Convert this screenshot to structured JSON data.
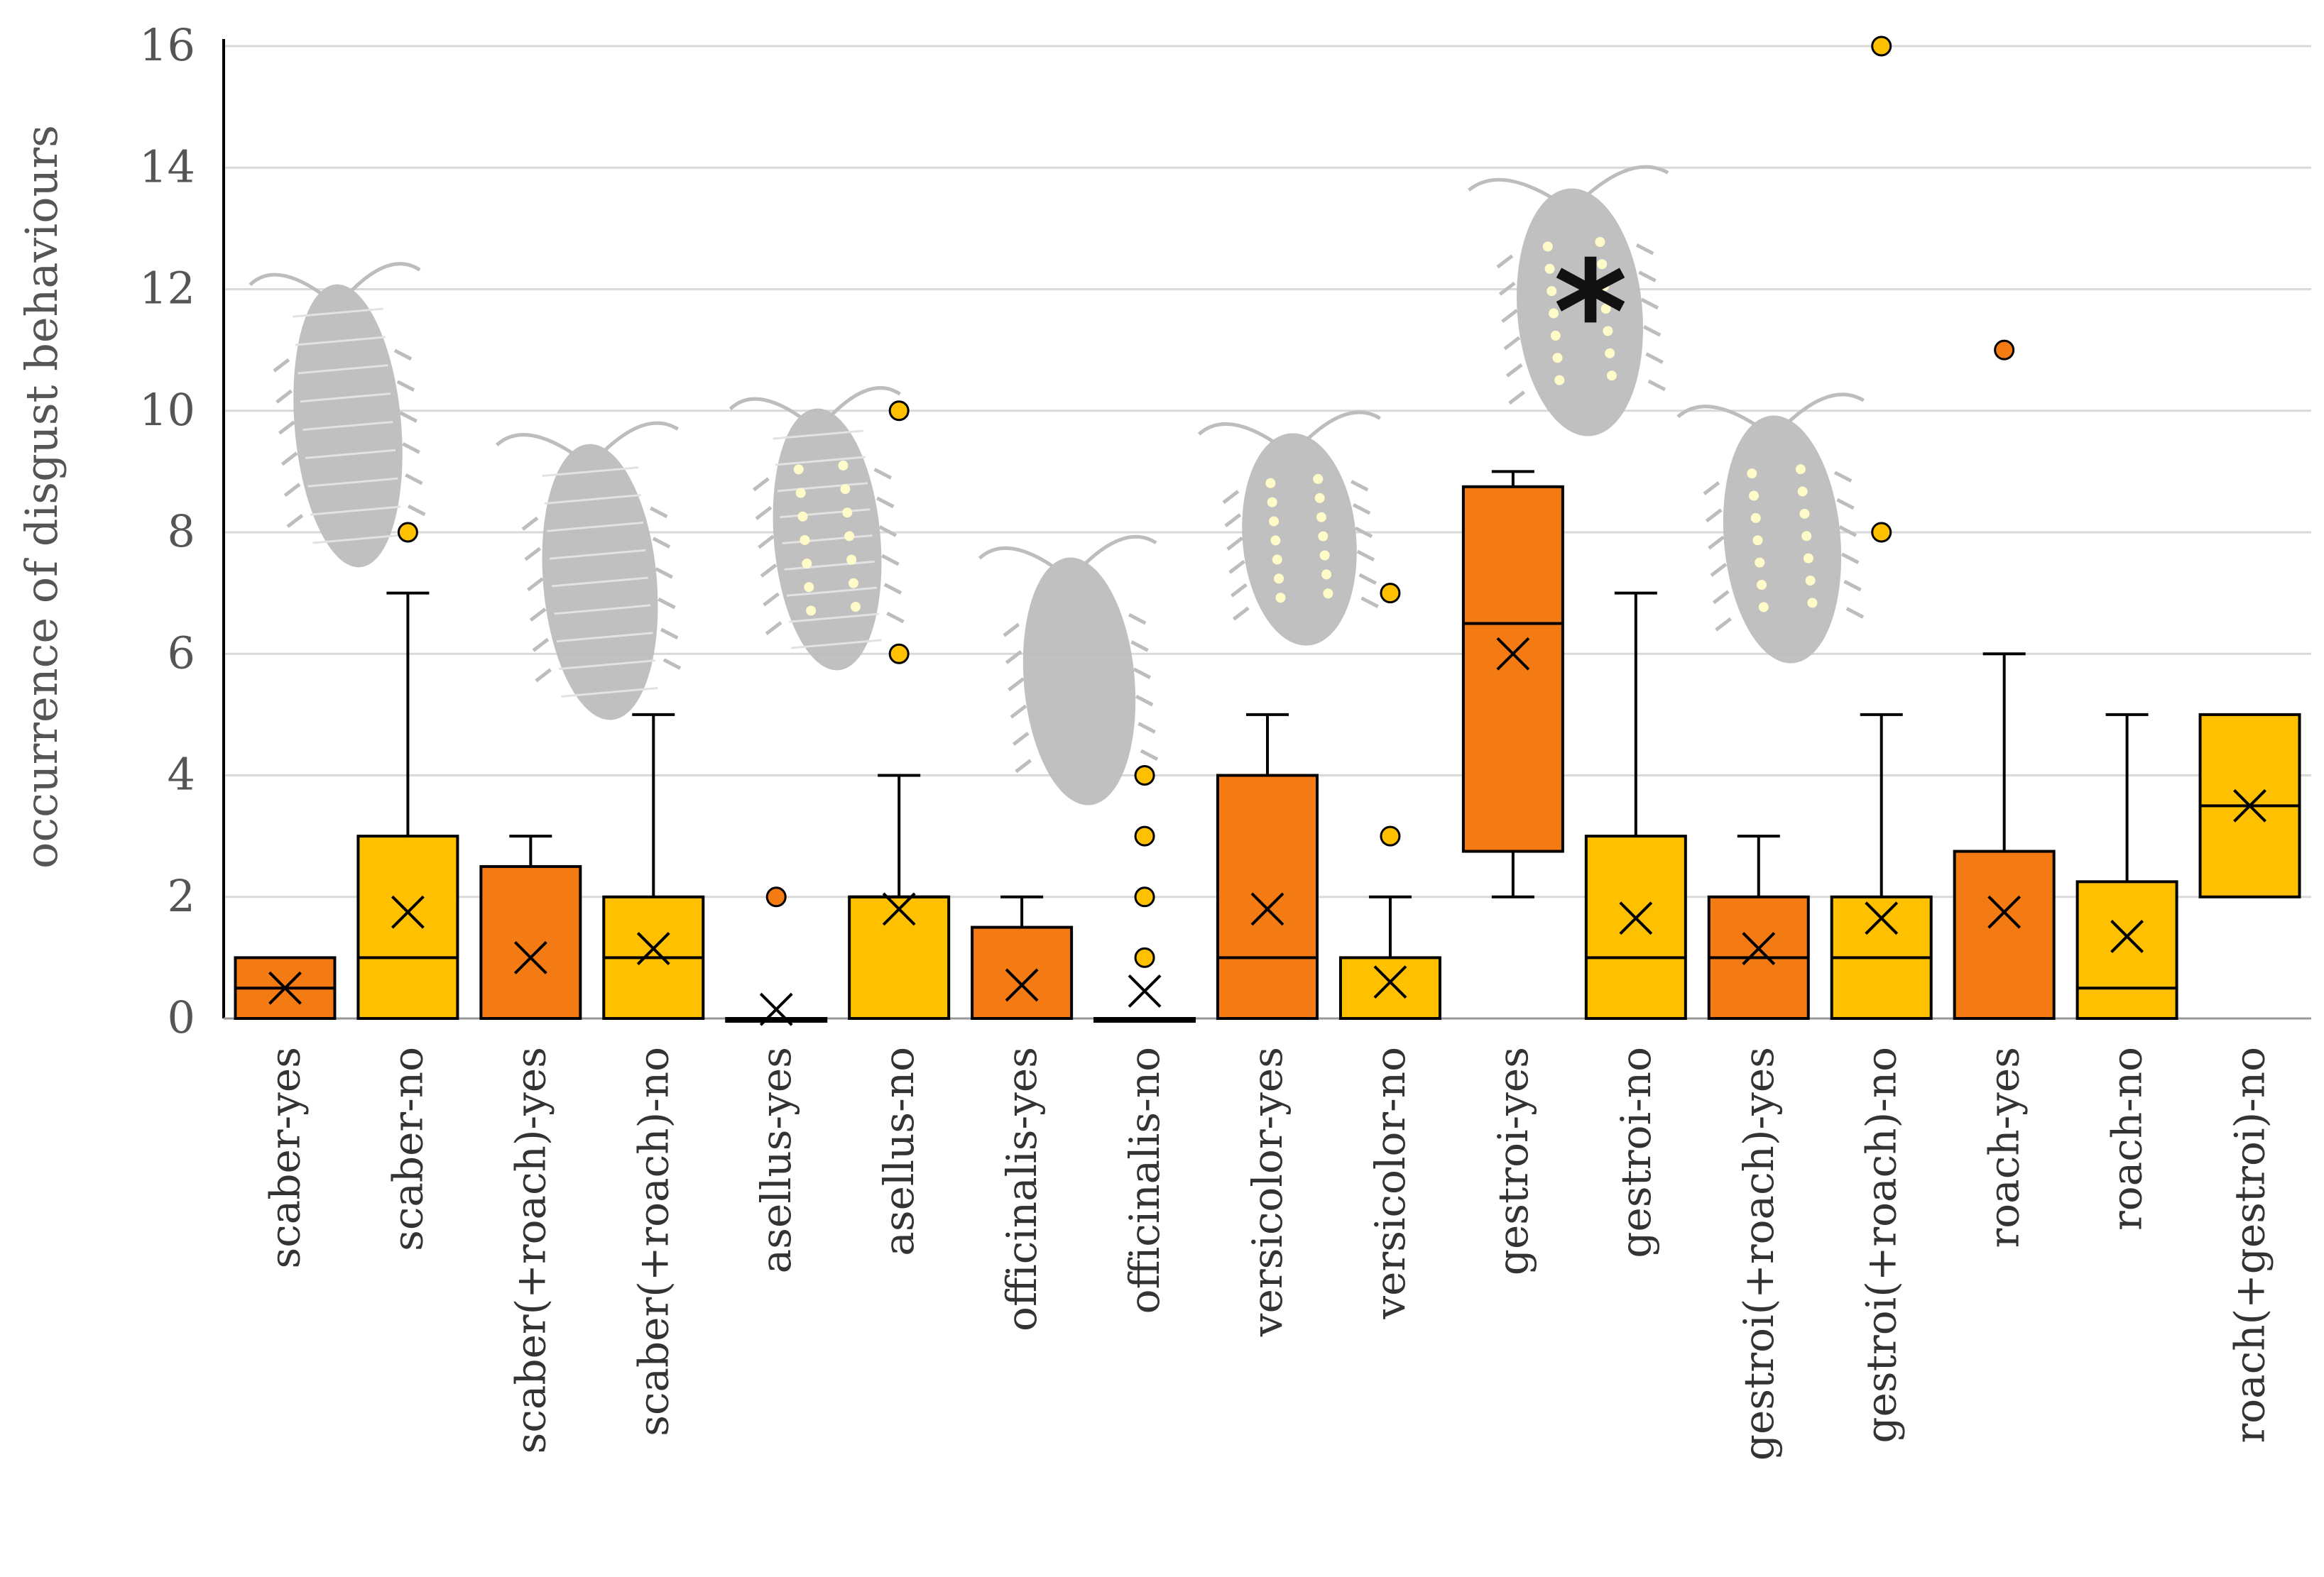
{
  "chart_data": {
    "type": "box",
    "title": "",
    "xlabel": "",
    "ylabel": "occurrence of disgust behaviours",
    "ylim": [
      0,
      16
    ],
    "yticks": [
      0,
      2,
      4,
      6,
      8,
      10,
      12,
      14,
      16
    ],
    "grid": true,
    "annotation": "*",
    "colors": {
      "yes": "#F47A13",
      "no": "#FFC000",
      "outline": "#000000",
      "grid": "#D9D9D9",
      "silhouette": "#BDBDBD",
      "dots": "#FFFBC8"
    },
    "boxes": [
      {
        "label": "scaber-yes",
        "group": "yes",
        "min": 0,
        "q1": 0,
        "median": 0.5,
        "q3": 1,
        "max": 1,
        "mean": 0.5,
        "outliers": []
      },
      {
        "label": "scaber-no",
        "group": "no",
        "min": 0,
        "q1": 0,
        "median": 1,
        "q3": 3,
        "max": 7,
        "mean": 1.75,
        "outliers": [
          8
        ]
      },
      {
        "label": "scaber(+roach)-yes",
        "group": "yes",
        "min": 0,
        "q1": 0,
        "median": 0,
        "q3": 2.5,
        "max": 3,
        "mean": 1,
        "outliers": []
      },
      {
        "label": "scaber(+roach)-no",
        "group": "no",
        "min": 0,
        "q1": 0,
        "median": 1,
        "q3": 2,
        "max": 5,
        "mean": 1.15,
        "outliers": []
      },
      {
        "label": "asellus-yes",
        "group": "yes",
        "min": 0,
        "q1": 0,
        "median": 0,
        "q3": 0,
        "max": 0,
        "mean": 0.15,
        "outliers": [
          2
        ]
      },
      {
        "label": "asellus-no",
        "group": "no",
        "min": 0,
        "q1": 0,
        "median": 2,
        "q3": 2,
        "max": 4,
        "mean": 1.8,
        "outliers": [
          6,
          10
        ]
      },
      {
        "label": "officinalis-yes",
        "group": "yes",
        "min": 0,
        "q1": 0,
        "median": 0,
        "q3": 1.5,
        "max": 2,
        "mean": 0.55,
        "outliers": []
      },
      {
        "label": "officinalis-no",
        "group": "no",
        "min": 0,
        "q1": 0,
        "median": 0,
        "q3": 0,
        "max": 0,
        "mean": 0.45,
        "outliers": [
          1,
          2,
          3,
          4
        ]
      },
      {
        "label": "versicolor-yes",
        "group": "yes",
        "min": 0,
        "q1": 0,
        "median": 1,
        "q3": 4,
        "max": 5,
        "mean": 1.8,
        "outliers": []
      },
      {
        "label": "versicolor-no",
        "group": "no",
        "min": 0,
        "q1": 0,
        "median": 0,
        "q3": 1,
        "max": 2,
        "mean": 0.6,
        "outliers": [
          3,
          7
        ]
      },
      {
        "label": "gestroi-yes",
        "group": "yes",
        "min": 2,
        "q1": 2.75,
        "median": 6.5,
        "q3": 8.75,
        "max": 9,
        "mean": 6,
        "outliers": []
      },
      {
        "label": "gestroi-no",
        "group": "no",
        "min": 0,
        "q1": 0,
        "median": 1,
        "q3": 3,
        "max": 7,
        "mean": 1.65,
        "outliers": []
      },
      {
        "label": "gestroi(+roach)-yes",
        "group": "yes",
        "min": 0,
        "q1": 0,
        "median": 1,
        "q3": 2,
        "max": 3,
        "mean": 1.15,
        "outliers": []
      },
      {
        "label": "gestroi(+roach)-no",
        "group": "no",
        "min": 0,
        "q1": 0,
        "median": 1,
        "q3": 2,
        "max": 5,
        "mean": 1.65,
        "outliers": [
          8,
          16
        ]
      },
      {
        "label": "roach-yes",
        "group": "yes",
        "min": 0,
        "q1": 0,
        "median": 0,
        "q3": 2.75,
        "max": 6,
        "mean": 1.75,
        "outliers": [
          11
        ]
      },
      {
        "label": "roach-no",
        "group": "no",
        "min": 0,
        "q1": 0,
        "median": 0.5,
        "q3": 2.25,
        "max": 5,
        "mean": 1.35,
        "outliers": []
      },
      {
        "label": "roach(+gestroi)-no",
        "group": "no",
        "min": 2,
        "q1": 2,
        "median": 3.5,
        "q3": 5,
        "max": 5,
        "mean": 3.5,
        "outliers": []
      }
    ]
  },
  "illustrations": [
    {
      "name": "scaber-silhouette-icon",
      "kind": "scaber",
      "dots": false
    },
    {
      "name": "scaber-roach-silhouette-icon",
      "kind": "scaber",
      "dots": false
    },
    {
      "name": "asellus-silhouette-icon",
      "kind": "asellus",
      "dots": true
    },
    {
      "name": "officinalis-silhouette-icon",
      "kind": "smooth",
      "dots": false
    },
    {
      "name": "versicolor-silhouette-icon",
      "kind": "smooth",
      "dots": true
    },
    {
      "name": "gestroi-silhouette-icon",
      "kind": "smooth",
      "dots": true
    },
    {
      "name": "gestroi-roach-silhouette-icon",
      "kind": "smooth",
      "dots": true
    }
  ]
}
